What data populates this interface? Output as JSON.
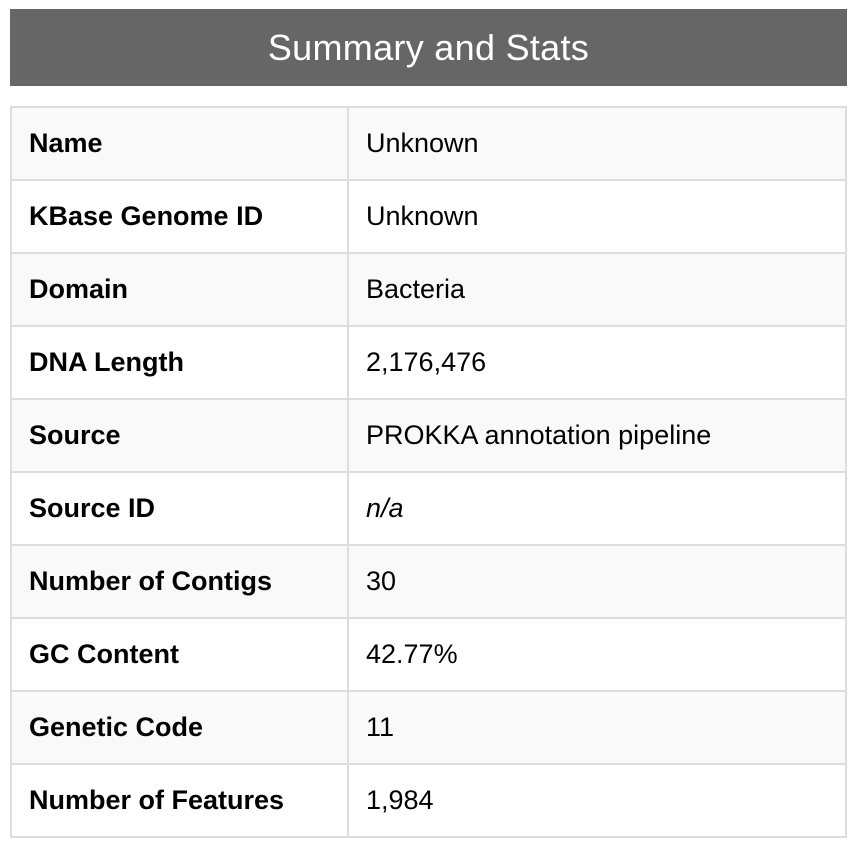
{
  "header": {
    "title": "Summary and Stats",
    "background_color": "#666666",
    "title_color": "#ffffff"
  },
  "stats": {
    "rows": [
      {
        "label": "Name",
        "value": "Unknown"
      },
      {
        "label": "KBase Genome ID",
        "value": "Unknown"
      },
      {
        "label": "Domain",
        "value": "Bacteria"
      },
      {
        "label": "DNA Length",
        "value": "2,176,476"
      },
      {
        "label": "Source",
        "value": "PROKKA annotation pipeline"
      },
      {
        "label": "Source ID",
        "value": "n/a"
      },
      {
        "label": "Number of Contigs",
        "value": "30"
      },
      {
        "label": "GC Content",
        "value": "42.77%"
      },
      {
        "label": "Genetic Code",
        "value": "11"
      },
      {
        "label": "Number of Features",
        "value": "1,984"
      }
    ],
    "striped_row_color": "#f9f9f9",
    "border_color": "#dddddd"
  }
}
